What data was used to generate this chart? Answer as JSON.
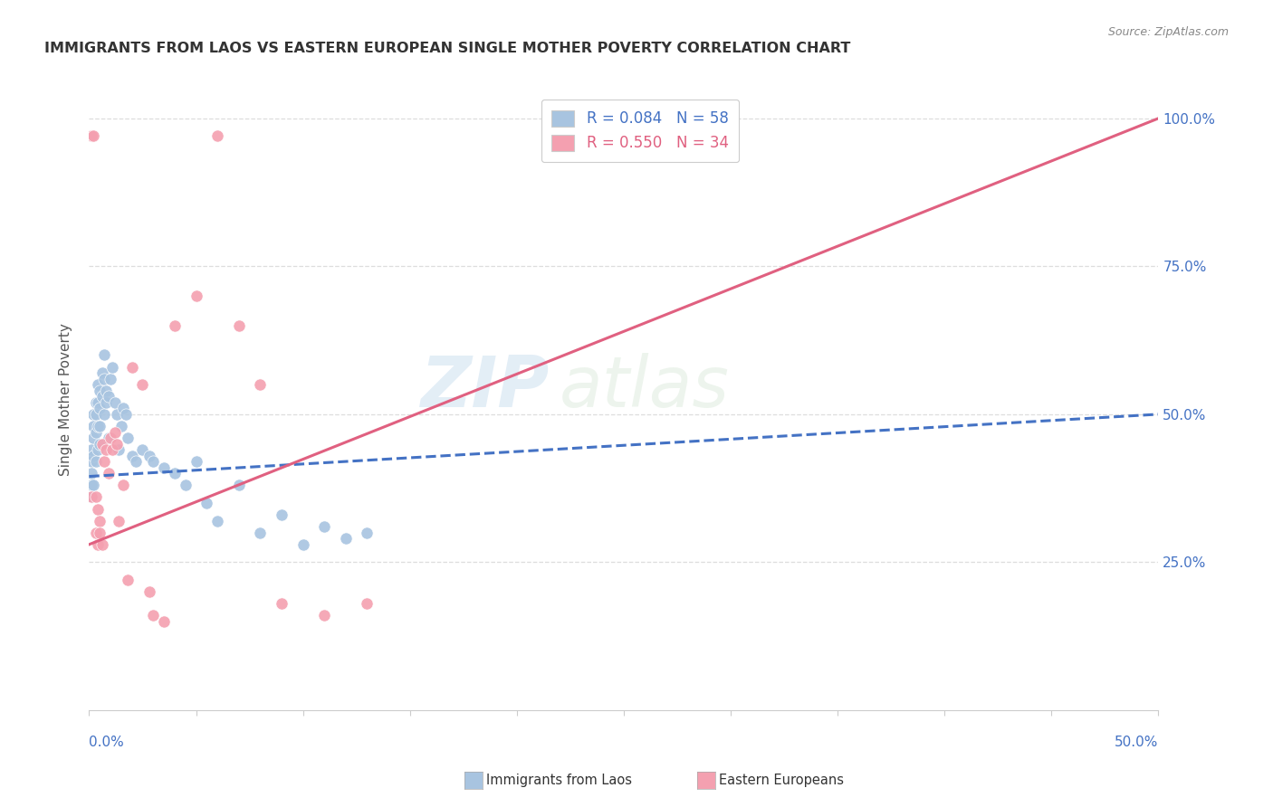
{
  "title": "IMMIGRANTS FROM LAOS VS EASTERN EUROPEAN SINGLE MOTHER POVERTY CORRELATION CHART",
  "source": "Source: ZipAtlas.com",
  "ylabel": "Single Mother Poverty",
  "xlim": [
    0.0,
    0.5
  ],
  "ylim": [
    0.0,
    1.05
  ],
  "watermark_zip": "ZIP",
  "watermark_atlas": "atlas",
  "blue_scatter_x": [
    0.001,
    0.001,
    0.001,
    0.001,
    0.001,
    0.002,
    0.002,
    0.002,
    0.002,
    0.002,
    0.003,
    0.003,
    0.003,
    0.003,
    0.004,
    0.004,
    0.004,
    0.004,
    0.005,
    0.005,
    0.005,
    0.005,
    0.006,
    0.006,
    0.007,
    0.007,
    0.007,
    0.008,
    0.008,
    0.009,
    0.009,
    0.01,
    0.011,
    0.012,
    0.013,
    0.014,
    0.015,
    0.016,
    0.017,
    0.018,
    0.02,
    0.022,
    0.025,
    0.028,
    0.03,
    0.035,
    0.04,
    0.045,
    0.05,
    0.055,
    0.06,
    0.07,
    0.08,
    0.09,
    0.1,
    0.11,
    0.12,
    0.13
  ],
  "blue_scatter_y": [
    0.38,
    0.42,
    0.4,
    0.36,
    0.44,
    0.46,
    0.43,
    0.5,
    0.48,
    0.38,
    0.52,
    0.5,
    0.47,
    0.42,
    0.55,
    0.52,
    0.44,
    0.48,
    0.54,
    0.51,
    0.48,
    0.45,
    0.57,
    0.53,
    0.6,
    0.56,
    0.5,
    0.54,
    0.52,
    0.53,
    0.46,
    0.56,
    0.58,
    0.52,
    0.5,
    0.44,
    0.48,
    0.51,
    0.5,
    0.46,
    0.43,
    0.42,
    0.44,
    0.43,
    0.42,
    0.41,
    0.4,
    0.38,
    0.42,
    0.35,
    0.32,
    0.38,
    0.3,
    0.33,
    0.28,
    0.31,
    0.29,
    0.3
  ],
  "pink_scatter_x": [
    0.001,
    0.001,
    0.002,
    0.003,
    0.003,
    0.004,
    0.004,
    0.005,
    0.005,
    0.006,
    0.006,
    0.007,
    0.008,
    0.009,
    0.01,
    0.011,
    0.012,
    0.013,
    0.014,
    0.016,
    0.018,
    0.02,
    0.025,
    0.028,
    0.03,
    0.035,
    0.04,
    0.05,
    0.06,
    0.07,
    0.08,
    0.09,
    0.11,
    0.13
  ],
  "pink_scatter_y": [
    0.36,
    0.97,
    0.97,
    0.36,
    0.3,
    0.34,
    0.28,
    0.32,
    0.3,
    0.28,
    0.45,
    0.42,
    0.44,
    0.4,
    0.46,
    0.44,
    0.47,
    0.45,
    0.32,
    0.38,
    0.22,
    0.58,
    0.55,
    0.2,
    0.16,
    0.15,
    0.65,
    0.7,
    0.97,
    0.65,
    0.55,
    0.18,
    0.16,
    0.18
  ],
  "blue_line_intercept": 0.395,
  "blue_line_slope": 0.21,
  "pink_line_intercept": 0.28,
  "pink_line_slope": 1.44,
  "scatter_blue_color": "#a8c4e0",
  "scatter_pink_color": "#f4a0b0",
  "line_blue_color": "#4472c4",
  "line_pink_color": "#e06080",
  "bg_color": "#ffffff",
  "grid_color": "#dddddd",
  "axis_label_color": "#4472c4",
  "title_color": "#333333",
  "source_color": "#888888",
  "ylabel_color": "#555555",
  "legend_blue_label": "R = 0.084   N = 58",
  "legend_pink_label": "R = 0.550   N = 34",
  "legend_blue_text_color": "#4472c4",
  "legend_pink_text_color": "#e06080",
  "bottom_legend_blue": "Immigrants from Laos",
  "bottom_legend_pink": "Eastern Europeans"
}
